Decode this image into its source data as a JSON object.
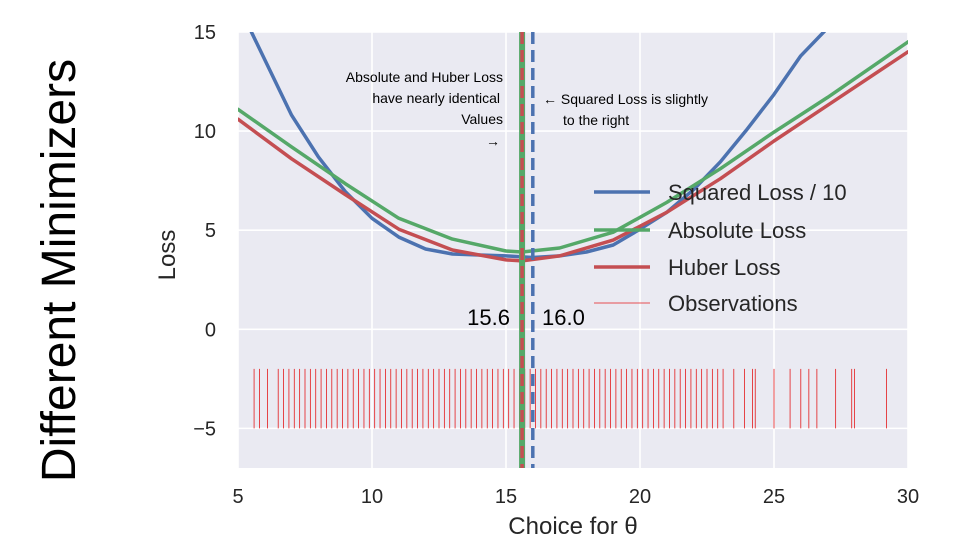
{
  "side_title": "Different Minimizers",
  "chart_data": {
    "type": "line",
    "xlabel": "Choice for θ",
    "ylabel": "Loss",
    "xlim": [
      5,
      30
    ],
    "ylim": [
      -7,
      15
    ],
    "xticks": [
      5,
      10,
      15,
      20,
      25,
      30
    ],
    "yticks": [
      -5,
      0,
      5,
      10,
      15
    ],
    "xtick_labels": [
      "5",
      "10",
      "15",
      "20",
      "25",
      "30"
    ],
    "ytick_labels": [
      "−5",
      "0",
      "5",
      "10",
      "15"
    ],
    "grid": true,
    "legend_position": "right",
    "series": [
      {
        "name": "Squared Loss / 10",
        "color": "#4c72b0",
        "x": [
          5.5,
          7,
          8,
          9,
          10,
          11,
          12,
          13,
          14,
          15,
          16,
          17,
          18,
          19,
          20,
          21,
          22,
          23,
          24,
          25,
          26,
          27,
          28,
          28.2
        ],
        "y": [
          15,
          10.8,
          8.7,
          6.95,
          5.6,
          4.65,
          4.05,
          3.8,
          3.75,
          3.7,
          3.62,
          3.7,
          3.9,
          4.25,
          5.05,
          5.9,
          7.05,
          8.45,
          10.1,
          11.85,
          13.8,
          15.2,
          16,
          16
        ]
      },
      {
        "name": "Absolute Loss",
        "color": "#55a868",
        "x": [
          5,
          7,
          9,
          11,
          13,
          15,
          15.6,
          17,
          19,
          21,
          23,
          25,
          27,
          30
        ],
        "y": [
          11.1,
          9.2,
          7.35,
          5.6,
          4.55,
          3.95,
          3.9,
          4.1,
          4.9,
          6.4,
          8.1,
          9.95,
          11.7,
          14.5
        ]
      },
      {
        "name": "Huber Loss",
        "color": "#c44e52",
        "x": [
          5,
          7,
          9,
          11,
          13,
          15,
          15.6,
          17,
          19,
          21,
          23,
          25,
          27,
          30
        ],
        "y": [
          10.6,
          8.6,
          6.8,
          5.05,
          4.0,
          3.5,
          3.45,
          3.7,
          4.5,
          5.9,
          7.6,
          9.5,
          11.3,
          14
        ]
      },
      {
        "name": "Observations",
        "color": "#e41a1c",
        "type": "rug",
        "y_range": [
          -5,
          -2
        ],
        "values": [
          5.6,
          5.8,
          6.1,
          6.5,
          6.7,
          6.9,
          7.1,
          7.3,
          7.5,
          7.7,
          7.9,
          8.1,
          8.3,
          8.5,
          8.7,
          8.9,
          9.1,
          9.3,
          9.5,
          9.7,
          9.9,
          10.1,
          10.3,
          10.5,
          10.7,
          10.9,
          11.1,
          11.3,
          11.5,
          11.7,
          11.9,
          12.1,
          12.3,
          12.5,
          12.7,
          12.9,
          13.1,
          13.3,
          13.5,
          13.7,
          13.9,
          14.1,
          14.3,
          14.5,
          14.7,
          14.9,
          15.1,
          15.3,
          15.5,
          15.7,
          15.9,
          16.1,
          16.3,
          16.5,
          16.7,
          16.9,
          17.1,
          17.3,
          17.5,
          17.7,
          17.9,
          18.1,
          18.3,
          18.5,
          18.7,
          18.9,
          19.1,
          19.3,
          19.5,
          19.7,
          19.9,
          20.1,
          20.3,
          20.5,
          20.7,
          20.9,
          21.1,
          21.3,
          21.5,
          21.7,
          21.9,
          22.1,
          22.3,
          22.5,
          22.7,
          22.9,
          23.1,
          23.5,
          23.9,
          24.2,
          24.3,
          25,
          25.6,
          26,
          26.3,
          26.6,
          27.3,
          27.9,
          28,
          29.2
        ]
      }
    ],
    "vlines": [
      {
        "x": 15.6,
        "color": "#55a868",
        "style": "solid",
        "label": "15.6"
      },
      {
        "x": 15.6,
        "color": "#c44e52",
        "style": "dashed",
        "label": ""
      },
      {
        "x": 16.0,
        "color": "#4c72b0",
        "style": "dashed",
        "label": "16.0"
      }
    ],
    "annotations": [
      {
        "lines": [
          "Absolute and Huber Loss",
          "have nearly identical",
          "Values",
          "→"
        ]
      },
      {
        "lines": [
          "← Squared Loss is slightly",
          "to the right"
        ]
      }
    ]
  }
}
